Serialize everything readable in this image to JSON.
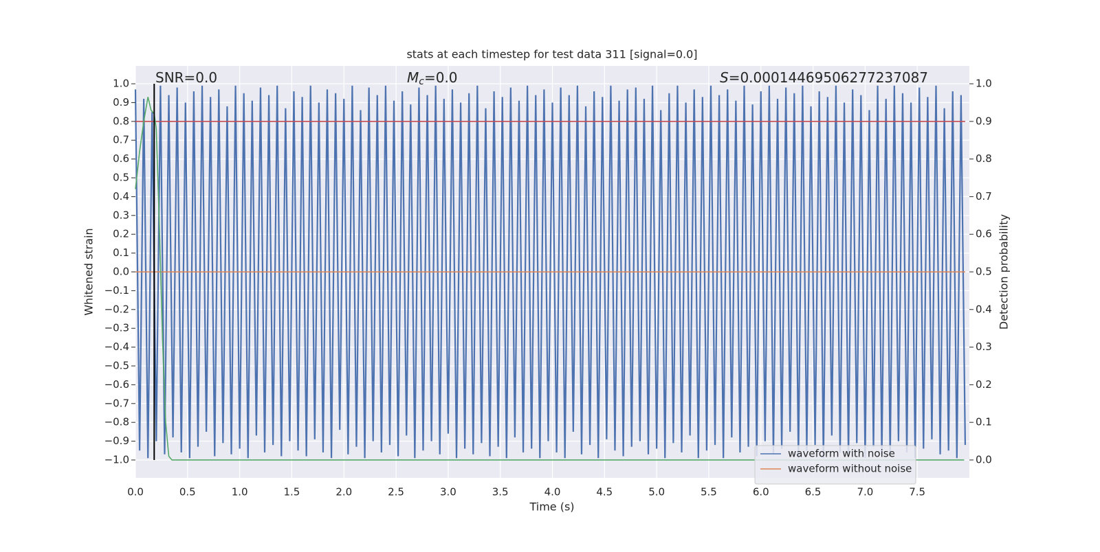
{
  "chart_data": {
    "type": "line",
    "title": "stats at each timestep for test data 311 [signal=0.0]",
    "xlabel": "Time (s)",
    "ylabel": "Whitened strain",
    "y2label": "Detection probability",
    "annotations": [
      {
        "text": "SNR=0.0"
      },
      {
        "symbol": "M",
        "subscript": "c",
        "text": "=0.0"
      },
      {
        "symbol": "S",
        "text": "=0.00014469506277237087"
      }
    ],
    "xlim": [
      0,
      8.0
    ],
    "ylim": [
      -1.095,
      1.095
    ],
    "y2lim": [
      -0.0475,
      1.0475
    ],
    "xticks": [
      {
        "value": 0,
        "label": "0.0"
      },
      0.5,
      {
        "value": 1,
        "label": "1.0"
      },
      1.5,
      {
        "value": 2,
        "label": "2.0"
      },
      2.5,
      {
        "value": 3,
        "label": "3.0"
      },
      3.5,
      {
        "value": 4,
        "label": "4.0"
      },
      4.5,
      {
        "value": 5,
        "label": "5.0"
      },
      5.5,
      {
        "value": 6,
        "label": "6.0"
      },
      6.5,
      {
        "value": 7,
        "label": "7.0"
      },
      7.5
    ],
    "yticks": [
      {
        "value": 1,
        "label": "1.0"
      },
      0.9,
      0.8,
      0.7,
      0.6,
      0.5,
      0.4,
      0.3,
      0.2,
      0.1,
      {
        "value": 0,
        "label": "0.0"
      },
      {
        "value": -0.1,
        "label": "−0.1"
      },
      {
        "value": -0.2,
        "label": "−0.2"
      },
      {
        "value": -0.3,
        "label": "−0.3"
      },
      {
        "value": -0.4,
        "label": "−0.4"
      },
      {
        "value": -0.5,
        "label": "−0.5"
      },
      {
        "value": -0.6,
        "label": "−0.6"
      },
      {
        "value": -0.7,
        "label": "−0.7"
      },
      {
        "value": -0.8,
        "label": "−0.8"
      },
      {
        "value": -0.9,
        "label": "−0.9"
      },
      {
        "value": -1,
        "label": "−1.0"
      }
    ],
    "y2ticks": [
      {
        "value": 0,
        "label": "0.0"
      },
      0.1,
      0.2,
      0.3,
      0.4,
      0.5,
      0.6,
      0.7,
      0.8,
      0.9,
      {
        "value": 1,
        "label": "1.0"
      }
    ],
    "grid": true,
    "legend": "lower right",
    "marker_time": 0.18,
    "marker_color": "#000000",
    "series": [
      {
        "name": "waveform with noise",
        "color": "#4c72b0",
        "x": [
          0,
          0.04,
          0.08,
          0.12,
          0.16,
          0.2,
          0.24,
          0.28,
          0.32,
          0.36,
          0.4,
          0.44,
          0.48,
          0.52,
          0.56,
          0.6,
          0.64,
          0.68,
          0.72,
          0.76,
          0.8,
          0.84,
          0.88,
          0.92,
          0.96,
          1,
          1.04,
          1.08,
          1.12,
          1.16,
          1.2,
          1.24,
          1.28,
          1.32,
          1.36,
          1.4,
          1.44,
          1.48,
          1.52,
          1.56,
          1.6,
          1.64,
          1.68,
          1.72,
          1.76,
          1.8,
          1.84,
          1.88,
          1.92,
          1.96,
          2,
          2.04,
          2.08,
          2.12,
          2.16,
          2.2,
          2.24,
          2.28,
          2.32,
          2.36,
          2.4,
          2.44,
          2.48,
          2.52,
          2.56,
          2.6,
          2.64,
          2.68,
          2.72,
          2.76,
          2.8,
          2.84,
          2.88,
          2.92,
          2.96,
          3,
          3.04,
          3.08,
          3.12,
          3.16,
          3.2,
          3.24,
          3.28,
          3.32,
          3.36,
          3.4,
          3.44,
          3.48,
          3.52,
          3.56,
          3.6,
          3.64,
          3.68,
          3.72,
          3.76,
          3.8,
          3.84,
          3.88,
          3.92,
          3.96,
          4,
          4.04,
          4.08,
          4.12,
          4.16,
          4.2,
          4.24,
          4.28,
          4.32,
          4.36,
          4.4,
          4.44,
          4.48,
          4.52,
          4.56,
          4.6,
          4.64,
          4.68,
          4.72,
          4.76,
          4.8,
          4.84,
          4.88,
          4.92,
          4.96,
          5,
          5.04,
          5.08,
          5.12,
          5.16,
          5.2,
          5.24,
          5.28,
          5.32,
          5.36,
          5.4,
          5.44,
          5.48,
          5.52,
          5.56,
          5.6,
          5.64,
          5.68,
          5.72,
          5.76,
          5.8,
          5.84,
          5.88,
          5.92,
          5.96,
          6,
          6.04,
          6.08,
          6.12,
          6.16,
          6.2,
          6.24,
          6.28,
          6.32,
          6.36,
          6.4,
          6.44,
          6.48,
          6.52,
          6.56,
          6.6,
          6.64,
          6.68,
          6.72,
          6.76,
          6.8,
          6.84,
          6.88,
          6.92,
          6.96,
          7,
          7.04,
          7.08,
          7.12,
          7.16,
          7.2,
          7.24,
          7.28,
          7.32,
          7.36,
          7.4,
          7.44,
          7.48,
          7.52,
          7.56,
          7.6,
          7.64,
          7.68,
          7.72,
          7.76,
          7.8,
          7.84,
          7.88,
          7.92,
          7.96
        ],
        "values": [
          0.97,
          -0.95,
          0.92,
          -0.99,
          0.85,
          -0.9,
          0.99,
          -0.97,
          0.94,
          -0.88,
          0.98,
          -0.96,
          0.9,
          -0.99,
          0.96,
          -0.93,
          0.99,
          -0.85,
          0.93,
          -0.98,
          0.97,
          -0.91,
          0.88,
          -0.97,
          0.99,
          -0.94,
          0.95,
          -0.99,
          0.91,
          -0.87,
          0.98,
          -0.96,
          0.94,
          -0.92,
          0.99,
          -0.98,
          0.87,
          -0.9,
          0.96,
          -0.95,
          0.93,
          -0.98,
          0.99,
          -0.89,
          0.9,
          -0.96,
          0.97,
          -0.99,
          0.95,
          -0.84,
          0.92,
          -0.97,
          0.99,
          -0.93,
          0.86,
          -0.99,
          0.98,
          -0.9,
          0.94,
          -0.96,
          0.99,
          -0.92,
          0.91,
          -0.98,
          0.96,
          -0.87,
          0.89,
          -0.99,
          0.98,
          -0.95,
          0.94,
          -0.9,
          0.99,
          -0.97,
          0.92,
          -0.86,
          0.97,
          -0.99,
          0.9,
          -0.94,
          0.95,
          -0.97,
          0.99,
          -0.91,
          0.87,
          -0.98,
          0.96,
          -0.93,
          0.93,
          -0.99,
          0.98,
          -0.88,
          0.91,
          -0.96,
          0.99,
          -0.94,
          0.94,
          -0.99,
          0.97,
          -0.9,
          0.9,
          -0.96,
          0.98,
          -0.99,
          0.94,
          -0.85,
          0.99,
          -0.97,
          0.88,
          -0.92,
          0.96,
          -0.99,
          0.93,
          -0.89,
          0.99,
          -0.95,
          0.91,
          -0.98,
          0.97,
          -0.93,
          0.98,
          -0.9,
          0.92,
          -0.97,
          0.99,
          -0.94,
          0.86,
          -0.99,
          0.95,
          -0.91,
          0.99,
          -0.96,
          0.9,
          -0.87,
          0.97,
          -0.99,
          0.93,
          -0.95,
          0.99,
          -0.92,
          0.94,
          -0.99,
          0.97,
          -0.88,
          0.91,
          -0.96,
          0.99,
          -0.93,
          0.89,
          -0.98,
          0.96,
          -0.9,
          0.99,
          -0.97,
          0.92,
          -0.94,
          0.98,
          -0.85,
          0.95,
          -0.99,
          0.99,
          -0.95,
          0.88,
          -0.92,
          0.96,
          -0.99,
          0.93,
          -0.87,
          0.99,
          -0.96,
          0.9,
          -0.98,
          0.97,
          -0.91,
          0.94,
          -0.99,
          0.86,
          -0.93,
          0.99,
          -0.97,
          0.92,
          -0.98,
          0.99,
          -0.9,
          0.95,
          -0.96,
          0.9,
          -0.99,
          0.98,
          -0.94,
          0.93,
          -0.89,
          0.99,
          -0.97,
          0.87,
          -0.95,
          0.96,
          -0.99,
          0.94,
          -0.92
        ]
      },
      {
        "name": "waveform without noise",
        "color": "#dd8452",
        "x": [
          0,
          7.96
        ],
        "values": [
          0,
          0
        ]
      },
      {
        "color": "#c44e52",
        "x": [
          0,
          7.96
        ],
        "values": [
          0.8,
          0.8
        ]
      },
      {
        "color": "#55a868",
        "axis": "y2",
        "x": [
          0,
          0.04,
          0.08,
          0.12,
          0.15,
          0.18,
          0.2,
          0.23,
          0.26,
          0.29,
          0.32,
          0.35,
          0.4,
          7.95
        ],
        "values": [
          0.72,
          0.82,
          0.9,
          0.965,
          0.93,
          0.92,
          0.88,
          0.62,
          0.32,
          0.1,
          0.01,
          0,
          0,
          0
        ]
      }
    ]
  }
}
